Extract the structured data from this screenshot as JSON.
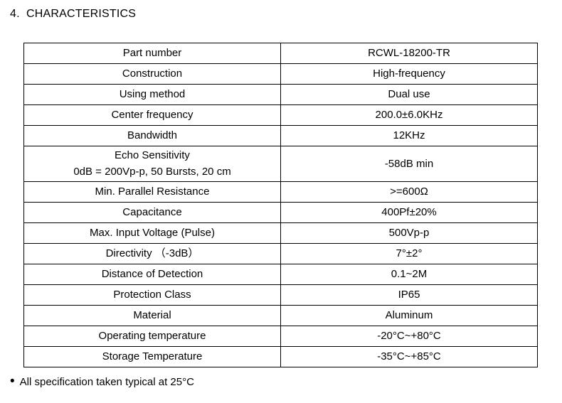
{
  "page": {
    "title": "4.  CHARACTERISTICS",
    "footnote_bullet": "•",
    "footnote": "All specification taken typical at 25°C"
  },
  "colors": {
    "background": "#ffffff",
    "text": "#000000",
    "table_border": "#000000"
  },
  "table": {
    "rows": [
      {
        "label_lines": [
          "Part number"
        ],
        "value": "RCWL-18200-TR"
      },
      {
        "label_lines": [
          "Construction"
        ],
        "value": "High-frequency"
      },
      {
        "label_lines": [
          "Using method"
        ],
        "value": "Dual use"
      },
      {
        "label_lines": [
          "Center frequency"
        ],
        "value": "200.0±6.0KHz"
      },
      {
        "label_lines": [
          "Bandwidth"
        ],
        "value": "12KHz"
      },
      {
        "label_lines": [
          "Echo Sensitivity",
          "0dB = 200Vp-p, 50 Bursts, 20 cm"
        ],
        "value": "-58dB min"
      },
      {
        "label_lines": [
          "Min. Parallel Resistance"
        ],
        "value": ">=600Ω"
      },
      {
        "label_lines": [
          "Capacitance"
        ],
        "value": "400Pf±20%"
      },
      {
        "label_lines": [
          "Max. Input Voltage (Pulse)"
        ],
        "value": "500Vp-p"
      },
      {
        "label_lines": [
          "Directivity （-3dB）"
        ],
        "value": "7°±2°"
      },
      {
        "label_lines": [
          "Distance of Detection"
        ],
        "value": "0.1~2M"
      },
      {
        "label_lines": [
          "Protection Class"
        ],
        "value": "IP65"
      },
      {
        "label_lines": [
          "Material"
        ],
        "value": "Aluminum"
      },
      {
        "label_lines": [
          "Operating temperature"
        ],
        "value": "-20°C~+80°C"
      },
      {
        "label_lines": [
          "Storage Temperature"
        ],
        "value": "-35°C~+85°C"
      }
    ]
  }
}
